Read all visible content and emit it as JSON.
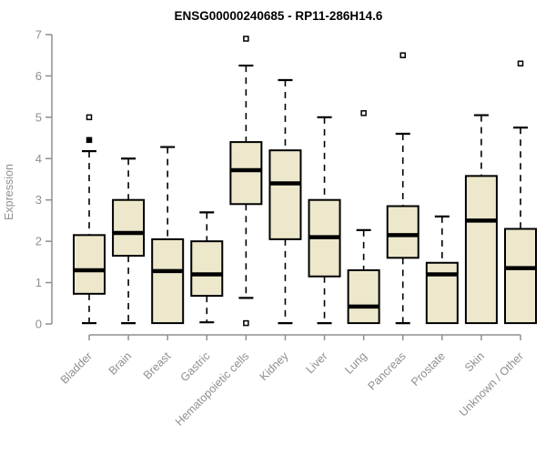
{
  "chart_data": {
    "type": "boxplot",
    "title": "ENSG00000240685 - RP11-286H14.6",
    "ylabel": "Expression",
    "xlabel": "",
    "ylim": [
      0,
      7
    ],
    "yticks": [
      0,
      1,
      2,
      3,
      4,
      5,
      6,
      7
    ],
    "grid": false,
    "legend": "none",
    "categories": [
      "Bladder",
      "Brain",
      "Breast",
      "Gastric",
      "Hematopoietic cells",
      "Kidney",
      "Liver",
      "Lung",
      "Pancreas",
      "Prostate",
      "Skin",
      "Unknown / Other"
    ],
    "boxes": [
      {
        "category": "Bladder",
        "whisker_low": 0.02,
        "q1": 0.73,
        "median": 1.3,
        "q3": 2.15,
        "whisker_high": 4.18,
        "outliers": [
          {
            "value": 4.45,
            "style": "filled"
          },
          {
            "value": 5.0,
            "style": "open"
          }
        ]
      },
      {
        "category": "Brain",
        "whisker_low": 0.02,
        "q1": 1.65,
        "median": 2.2,
        "q3": 3.0,
        "whisker_high": 4.0,
        "outliers": []
      },
      {
        "category": "Breast",
        "whisker_low": 0.02,
        "q1": 0.02,
        "median": 1.28,
        "q3": 2.05,
        "whisker_high": 4.28,
        "outliers": []
      },
      {
        "category": "Gastric",
        "whisker_low": 0.04,
        "q1": 0.68,
        "median": 1.2,
        "q3": 2.0,
        "whisker_high": 2.7,
        "outliers": []
      },
      {
        "category": "Hematopoietic cells",
        "whisker_low": 0.63,
        "q1": 2.9,
        "median": 3.72,
        "q3": 4.4,
        "whisker_high": 6.25,
        "outliers": [
          {
            "value": 6.9,
            "style": "open"
          },
          {
            "value": 0.02,
            "style": "open"
          }
        ]
      },
      {
        "category": "Kidney",
        "whisker_low": 0.02,
        "q1": 2.05,
        "median": 3.4,
        "q3": 4.2,
        "whisker_high": 5.9,
        "outliers": []
      },
      {
        "category": "Liver",
        "whisker_low": 0.02,
        "q1": 1.15,
        "median": 2.1,
        "q3": 3.0,
        "whisker_high": 5.0,
        "outliers": []
      },
      {
        "category": "Lung",
        "whisker_low": 0.02,
        "q1": 0.02,
        "median": 0.42,
        "q3": 1.3,
        "whisker_high": 2.27,
        "outliers": [
          {
            "value": 5.1,
            "style": "open"
          }
        ]
      },
      {
        "category": "Pancreas",
        "whisker_low": 0.02,
        "q1": 1.6,
        "median": 2.15,
        "q3": 2.85,
        "whisker_high": 4.6,
        "outliers": [
          {
            "value": 6.5,
            "style": "open"
          }
        ]
      },
      {
        "category": "Prostate",
        "whisker_low": 0.02,
        "q1": 0.02,
        "median": 1.2,
        "q3": 1.48,
        "whisker_high": 2.6,
        "outliers": []
      },
      {
        "category": "Skin",
        "whisker_low": 0.02,
        "q1": 0.02,
        "median": 2.5,
        "q3": 3.58,
        "whisker_high": 5.05,
        "outliers": []
      },
      {
        "category": "Unknown / Other",
        "whisker_low": 0.02,
        "q1": 0.02,
        "median": 1.35,
        "q3": 2.3,
        "whisker_high": 4.75,
        "outliers": [
          {
            "value": 6.3,
            "style": "open"
          }
        ]
      }
    ],
    "style": {
      "box_fill": "#EDE8CC",
      "box_border": "#000000",
      "median_color": "#000000",
      "whisker_color": "#000000",
      "outlier_color": "#000000",
      "axis_color": "#8f8f8f",
      "tick_label_color": "#8f8f8f",
      "title_color": "#000000"
    }
  }
}
